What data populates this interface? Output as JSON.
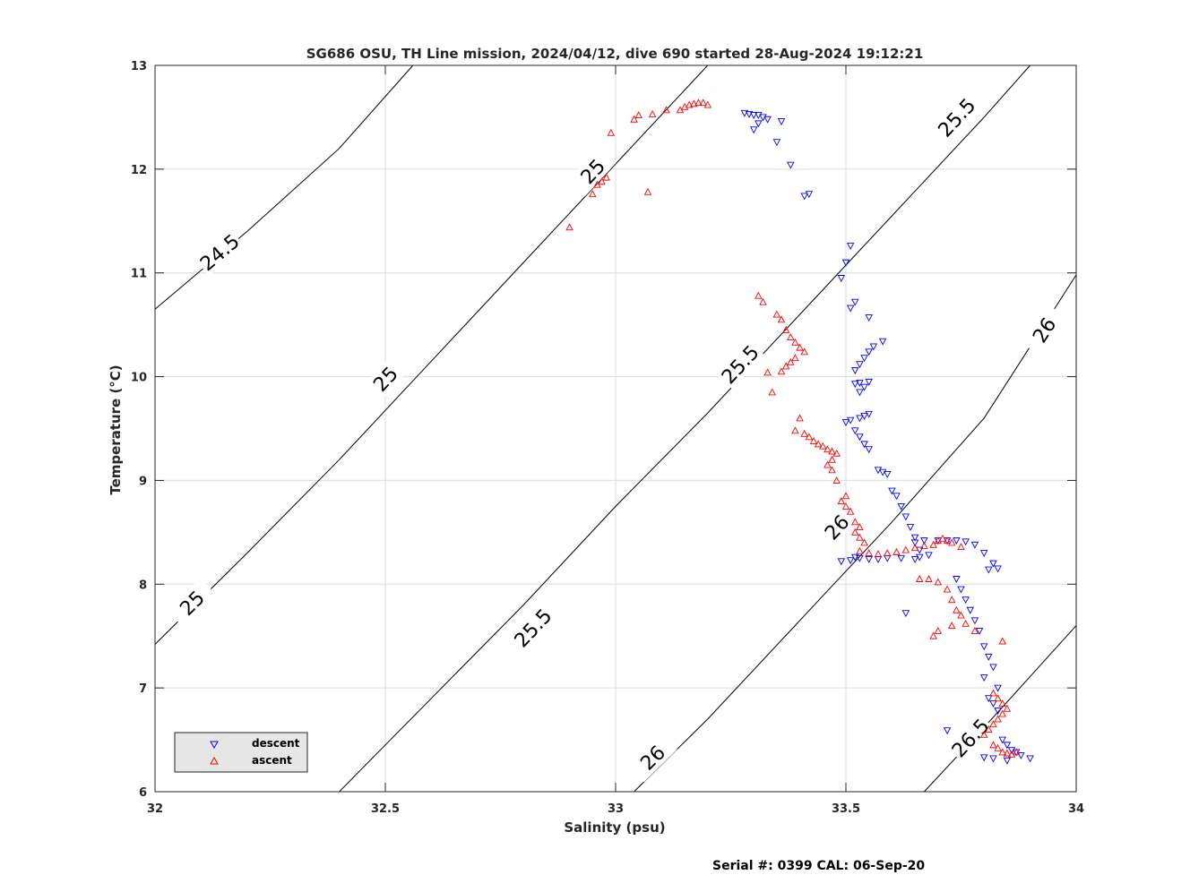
{
  "chart_data": {
    "type": "scatter",
    "title": "SG686 OSU, TH Line mission, 2024/04/12, dive 690 started 28-Aug-2024 19:12:21",
    "xlabel": "Salinity (psu)",
    "ylabel": "Temperature (°C)",
    "xlim": [
      32,
      34
    ],
    "ylim": [
      6,
      13
    ],
    "xticks": [
      32,
      32.5,
      33,
      33.5,
      34
    ],
    "xtick_labels": [
      "32",
      "32.5",
      "33",
      "33.5",
      "34"
    ],
    "yticks": [
      6,
      7,
      8,
      9,
      10,
      11,
      12,
      13
    ],
    "ytick_labels": [
      "6",
      "7",
      "8",
      "9",
      "10",
      "11",
      "12",
      "13"
    ],
    "grid": true,
    "legend_position": "bottom-left",
    "footer": "Serial #: 0399  CAL: 06-Sep-20",
    "density_contours": [
      {
        "label": "24.5",
        "points": [
          [
            32.0,
            10.65
          ],
          [
            32.2,
            11.4
          ],
          [
            32.4,
            12.2
          ],
          [
            32.56,
            13.0
          ]
        ],
        "label_positions": [
          [
            32.14,
            11.2
          ]
        ]
      },
      {
        "label": "25",
        "points": [
          [
            32.0,
            7.42
          ],
          [
            32.2,
            8.3
          ],
          [
            32.4,
            9.2
          ],
          [
            32.6,
            10.15
          ],
          [
            32.8,
            11.1
          ],
          [
            33.0,
            12.05
          ],
          [
            33.2,
            13.0
          ]
        ],
        "label_positions": [
          [
            32.08,
            7.82
          ],
          [
            32.5,
            9.98
          ],
          [
            32.95,
            11.98
          ]
        ]
      },
      {
        "label": "25.5",
        "points": [
          [
            32.4,
            6.0
          ],
          [
            32.6,
            6.9
          ],
          [
            32.8,
            7.8
          ],
          [
            33.0,
            8.75
          ],
          [
            33.2,
            9.65
          ],
          [
            33.4,
            10.6
          ],
          [
            33.6,
            11.55
          ],
          [
            33.8,
            12.5
          ],
          [
            33.9,
            13.0
          ]
        ],
        "label_positions": [
          [
            32.82,
            7.58
          ],
          [
            33.27,
            10.12
          ],
          [
            33.74,
            12.5
          ]
        ]
      },
      {
        "label": "26",
        "points": [
          [
            33.04,
            6.0
          ],
          [
            33.2,
            6.7
          ],
          [
            33.4,
            7.65
          ],
          [
            33.6,
            8.6
          ],
          [
            33.8,
            9.6
          ],
          [
            34.0,
            10.98
          ]
        ],
        "label_positions": [
          [
            33.08,
            6.33
          ],
          [
            33.48,
            8.55
          ],
          [
            33.93,
            10.45
          ]
        ]
      },
      {
        "label": "26.5",
        "points": [
          [
            33.67,
            6.0
          ],
          [
            33.8,
            6.62
          ],
          [
            34.0,
            7.6
          ]
        ],
        "label_positions": [
          [
            33.77,
            6.52
          ]
        ]
      }
    ],
    "series": [
      {
        "name": "descent",
        "color": "#0000ff",
        "marker": "triangle-down",
        "points": [
          [
            33.28,
            12.54
          ],
          [
            33.29,
            12.53
          ],
          [
            33.3,
            12.52
          ],
          [
            33.31,
            12.52
          ],
          [
            33.32,
            12.5
          ],
          [
            33.33,
            12.48
          ],
          [
            33.36,
            12.46
          ],
          [
            33.31,
            12.44
          ],
          [
            33.3,
            12.38
          ],
          [
            33.35,
            12.26
          ],
          [
            33.38,
            12.04
          ],
          [
            33.41,
            11.74
          ],
          [
            33.42,
            11.76
          ],
          [
            33.51,
            11.26
          ],
          [
            33.5,
            11.1
          ],
          [
            33.49,
            10.95
          ],
          [
            33.52,
            10.72
          ],
          [
            33.51,
            10.66
          ],
          [
            33.55,
            10.57
          ],
          [
            33.58,
            10.34
          ],
          [
            33.56,
            10.29
          ],
          [
            33.55,
            10.24
          ],
          [
            33.54,
            10.18
          ],
          [
            33.53,
            10.12
          ],
          [
            33.52,
            10.06
          ],
          [
            33.55,
            9.95
          ],
          [
            33.53,
            9.94
          ],
          [
            33.52,
            9.93
          ],
          [
            33.54,
            9.9
          ],
          [
            33.53,
            9.85
          ],
          [
            33.55,
            9.64
          ],
          [
            33.54,
            9.62
          ],
          [
            33.53,
            9.6
          ],
          [
            33.51,
            9.58
          ],
          [
            33.5,
            9.56
          ],
          [
            33.52,
            9.48
          ],
          [
            33.53,
            9.42
          ],
          [
            33.54,
            9.35
          ],
          [
            33.55,
            9.3
          ],
          [
            33.57,
            9.1
          ],
          [
            33.58,
            9.08
          ],
          [
            33.59,
            9.06
          ],
          [
            33.6,
            8.9
          ],
          [
            33.61,
            8.85
          ],
          [
            33.62,
            8.75
          ],
          [
            33.63,
            8.65
          ],
          [
            33.64,
            8.55
          ],
          [
            33.65,
            8.45
          ],
          [
            33.52,
            8.26
          ],
          [
            33.53,
            8.25
          ],
          [
            33.55,
            8.24
          ],
          [
            33.57,
            8.24
          ],
          [
            33.59,
            8.25
          ],
          [
            33.62,
            8.25
          ],
          [
            33.65,
            8.24
          ],
          [
            33.66,
            8.26
          ],
          [
            33.68,
            8.28
          ],
          [
            33.66,
            8.33
          ],
          [
            33.65,
            8.4
          ],
          [
            33.67,
            8.42
          ],
          [
            33.7,
            8.42
          ],
          [
            33.72,
            8.42
          ],
          [
            33.74,
            8.42
          ],
          [
            33.76,
            8.41
          ],
          [
            33.78,
            8.38
          ],
          [
            33.8,
            8.3
          ],
          [
            33.82,
            8.2
          ],
          [
            33.83,
            8.15
          ],
          [
            33.81,
            8.14
          ],
          [
            33.49,
            8.22
          ],
          [
            33.51,
            8.23
          ],
          [
            33.63,
            7.72
          ],
          [
            33.74,
            8.05
          ],
          [
            33.75,
            7.95
          ],
          [
            33.76,
            7.85
          ],
          [
            33.77,
            7.75
          ],
          [
            33.78,
            7.65
          ],
          [
            33.79,
            7.55
          ],
          [
            33.8,
            7.4
          ],
          [
            33.81,
            7.3
          ],
          [
            33.82,
            7.2
          ],
          [
            33.8,
            7.1
          ],
          [
            33.83,
            7.0
          ],
          [
            33.81,
            6.9
          ],
          [
            33.82,
            6.85
          ],
          [
            33.83,
            6.78
          ],
          [
            33.84,
            6.5
          ],
          [
            33.85,
            6.45
          ],
          [
            33.86,
            6.4
          ],
          [
            33.87,
            6.38
          ],
          [
            33.88,
            6.35
          ],
          [
            33.9,
            6.32
          ],
          [
            33.85,
            6.3
          ],
          [
            33.82,
            6.32
          ],
          [
            33.8,
            6.33
          ],
          [
            33.72,
            6.59
          ]
        ]
      },
      {
        "name": "ascent",
        "color": "#ff0000",
        "marker": "triangle-up",
        "points": [
          [
            32.9,
            11.44
          ],
          [
            32.95,
            11.76
          ],
          [
            32.96,
            11.85
          ],
          [
            32.97,
            11.88
          ],
          [
            32.98,
            11.92
          ],
          [
            32.99,
            12.35
          ],
          [
            33.07,
            11.78
          ],
          [
            33.04,
            12.48
          ],
          [
            33.05,
            12.52
          ],
          [
            33.08,
            12.53
          ],
          [
            33.11,
            12.57
          ],
          [
            33.14,
            12.57
          ],
          [
            33.15,
            12.6
          ],
          [
            33.16,
            12.62
          ],
          [
            33.17,
            12.63
          ],
          [
            33.18,
            12.64
          ],
          [
            33.19,
            12.64
          ],
          [
            33.2,
            12.62
          ],
          [
            33.31,
            10.78
          ],
          [
            33.32,
            10.72
          ],
          [
            33.35,
            10.6
          ],
          [
            33.36,
            10.55
          ],
          [
            33.37,
            10.45
          ],
          [
            33.38,
            10.38
          ],
          [
            33.39,
            10.33
          ],
          [
            33.4,
            10.28
          ],
          [
            33.41,
            10.24
          ],
          [
            33.39,
            10.18
          ],
          [
            33.38,
            10.14
          ],
          [
            33.37,
            10.1
          ],
          [
            33.36,
            10.05
          ],
          [
            33.33,
            10.04
          ],
          [
            33.34,
            9.85
          ],
          [
            33.4,
            9.6
          ],
          [
            33.39,
            9.48
          ],
          [
            33.41,
            9.45
          ],
          [
            33.42,
            9.42
          ],
          [
            33.43,
            9.38
          ],
          [
            33.44,
            9.35
          ],
          [
            33.45,
            9.33
          ],
          [
            33.46,
            9.3
          ],
          [
            33.47,
            9.28
          ],
          [
            33.48,
            9.26
          ],
          [
            33.47,
            9.2
          ],
          [
            33.46,
            9.15
          ],
          [
            33.47,
            9.1
          ],
          [
            33.48,
            9.0
          ],
          [
            33.5,
            8.85
          ],
          [
            33.49,
            8.8
          ],
          [
            33.5,
            8.75
          ],
          [
            33.51,
            8.7
          ],
          [
            33.52,
            8.6
          ],
          [
            33.53,
            8.55
          ],
          [
            33.52,
            8.5
          ],
          [
            33.53,
            8.45
          ],
          [
            33.54,
            8.4
          ],
          [
            33.53,
            8.32
          ],
          [
            33.55,
            8.3
          ],
          [
            33.57,
            8.29
          ],
          [
            33.59,
            8.3
          ],
          [
            33.61,
            8.31
          ],
          [
            33.63,
            8.33
          ],
          [
            33.65,
            8.35
          ],
          [
            33.67,
            8.37
          ],
          [
            33.69,
            8.38
          ],
          [
            33.7,
            8.42
          ],
          [
            33.71,
            8.44
          ],
          [
            33.72,
            8.42
          ],
          [
            33.73,
            8.4
          ],
          [
            33.75,
            8.36
          ],
          [
            33.66,
            8.05
          ],
          [
            33.68,
            8.05
          ],
          [
            33.7,
            8.02
          ],
          [
            33.72,
            7.95
          ],
          [
            33.73,
            7.85
          ],
          [
            33.74,
            7.75
          ],
          [
            33.75,
            7.7
          ],
          [
            33.73,
            7.6
          ],
          [
            33.7,
            7.55
          ],
          [
            33.69,
            7.5
          ],
          [
            33.76,
            7.62
          ],
          [
            33.78,
            7.55
          ],
          [
            33.84,
            7.45
          ],
          [
            33.82,
            6.95
          ],
          [
            33.83,
            6.9
          ],
          [
            33.84,
            6.85
          ],
          [
            33.85,
            6.8
          ],
          [
            33.84,
            6.75
          ],
          [
            33.83,
            6.7
          ],
          [
            33.82,
            6.65
          ],
          [
            33.81,
            6.6
          ],
          [
            33.8,
            6.55
          ],
          [
            33.82,
            6.45
          ],
          [
            33.83,
            6.42
          ],
          [
            33.84,
            6.38
          ],
          [
            33.85,
            6.37
          ],
          [
            33.86,
            6.36
          ],
          [
            33.87,
            6.38
          ]
        ]
      }
    ]
  }
}
